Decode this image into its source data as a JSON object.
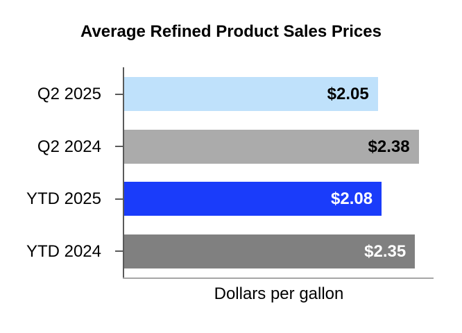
{
  "chart_data": {
    "type": "bar",
    "orientation": "horizontal",
    "title": "Average Refined Product Sales Prices",
    "xlabel": "Dollars per gallon",
    "categories": [
      "Q2 2025",
      "Q2 2024",
      "YTD 2025",
      "YTD 2024"
    ],
    "values": [
      2.05,
      2.38,
      2.08,
      2.35
    ],
    "value_labels": [
      "$2.05",
      "$2.38",
      "$2.08",
      "$2.35"
    ],
    "xlim": [
      0,
      2.5
    ],
    "grid": false,
    "legend": false,
    "bar_colors": [
      "#BFE1FB",
      "#ABABAB",
      "#1A3CFA",
      "#808080"
    ],
    "value_label_colors": [
      "#000000",
      "#000000",
      "#FFFFFF",
      "#FFFFFF"
    ],
    "axis_line_color": "#595959",
    "baseline_color": "#A6A6A6",
    "text_color": "#000000",
    "background_color": "#FFFFFF"
  }
}
